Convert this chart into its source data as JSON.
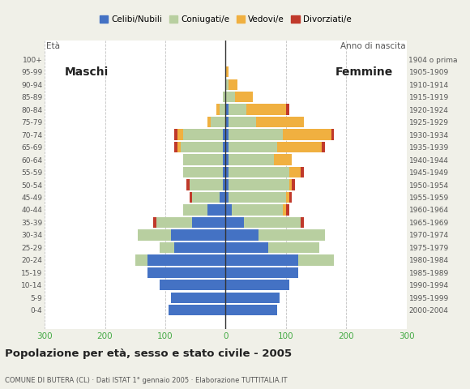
{
  "age_groups": [
    "0-4",
    "5-9",
    "10-14",
    "15-19",
    "20-24",
    "25-29",
    "30-34",
    "35-39",
    "40-44",
    "45-49",
    "50-54",
    "55-59",
    "60-64",
    "65-69",
    "70-74",
    "75-79",
    "80-84",
    "85-89",
    "90-94",
    "95-99",
    "100+"
  ],
  "birth_years": [
    "2000-2004",
    "1995-1999",
    "1990-1994",
    "1985-1989",
    "1980-1984",
    "1975-1979",
    "1970-1974",
    "1965-1969",
    "1960-1964",
    "1955-1959",
    "1950-1954",
    "1945-1949",
    "1940-1944",
    "1935-1939",
    "1930-1934",
    "1925-1929",
    "1920-1924",
    "1915-1919",
    "1910-1914",
    "1905-1909",
    "1904 o prima"
  ],
  "males": {
    "celibe": [
      95,
      90,
      110,
      130,
      130,
      85,
      90,
      55,
      30,
      10,
      5,
      5,
      5,
      5,
      5,
      0,
      0,
      0,
      0,
      0,
      0
    ],
    "coniugato": [
      0,
      0,
      0,
      0,
      20,
      25,
      55,
      60,
      40,
      45,
      55,
      65,
      65,
      70,
      65,
      25,
      10,
      5,
      0,
      0,
      0
    ],
    "vedovo": [
      0,
      0,
      0,
      0,
      0,
      0,
      0,
      0,
      0,
      0,
      0,
      0,
      0,
      5,
      10,
      5,
      5,
      0,
      0,
      0,
      0
    ],
    "divorziato": [
      0,
      0,
      0,
      0,
      0,
      0,
      0,
      5,
      0,
      5,
      5,
      0,
      0,
      5,
      5,
      0,
      0,
      0,
      0,
      0,
      0
    ]
  },
  "females": {
    "celibe": [
      85,
      90,
      105,
      120,
      120,
      70,
      55,
      30,
      10,
      5,
      5,
      5,
      5,
      5,
      5,
      5,
      5,
      0,
      0,
      0,
      0
    ],
    "coniugato": [
      0,
      0,
      0,
      0,
      60,
      85,
      110,
      95,
      85,
      95,
      100,
      100,
      75,
      80,
      90,
      45,
      30,
      15,
      5,
      0,
      0
    ],
    "vedovo": [
      0,
      0,
      0,
      0,
      0,
      0,
      0,
      0,
      5,
      5,
      5,
      20,
      30,
      75,
      80,
      80,
      65,
      30,
      15,
      5,
      0
    ],
    "divorziato": [
      0,
      0,
      0,
      0,
      0,
      0,
      0,
      5,
      5,
      5,
      5,
      5,
      0,
      5,
      5,
      0,
      5,
      0,
      0,
      0,
      0
    ]
  },
  "colors": {
    "celibe": "#4472c4",
    "coniugato": "#b8cfa0",
    "vedovo": "#f0b040",
    "divorziato": "#c0392b"
  },
  "legend_labels": [
    "Celibi/Nubili",
    "Coniugati/e",
    "Vedovi/e",
    "Divorziati/e"
  ],
  "xlim": 300,
  "title": "Popolazione per età, sesso e stato civile - 2005",
  "subtitle": "COMUNE DI BUTERA (CL) · Dati ISTAT 1° gennaio 2005 · Elaborazione TUTTITALIA.IT",
  "label_maschi": "Maschi",
  "label_femmine": "Femmine",
  "label_eta": "Età",
  "label_anno": "Anno di nascita",
  "bg_color": "#f0f0e8",
  "plot_bg": "#ffffff",
  "bar_height": 0.85
}
